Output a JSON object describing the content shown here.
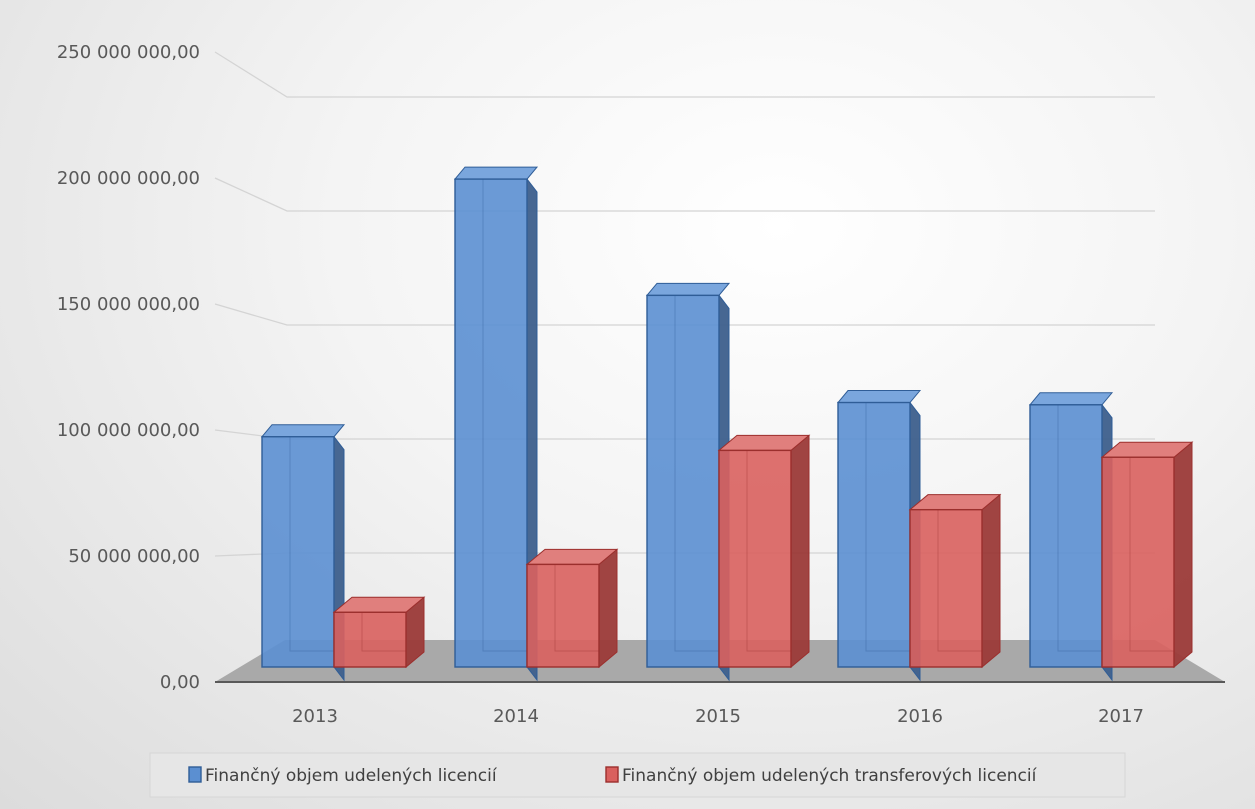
{
  "chart_data": {
    "type": "bar",
    "categories": [
      "2013",
      "2014",
      "2015",
      "2016",
      "2017"
    ],
    "series": [
      {
        "name": "Finančný objem udelených licencií",
        "values": [
          101000000,
          214000000,
          163000000,
          116000000,
          115000000
        ],
        "color": "#5b8fd1"
      },
      {
        "name": "Finančný objem udelených transferových licencií",
        "values": [
          24000000,
          45000000,
          95000000,
          69000000,
          92000000
        ],
        "color": "#d9605e"
      }
    ],
    "y_ticks": [
      0,
      50000000,
      100000000,
      150000000,
      200000000,
      250000000
    ],
    "y_tick_labels": [
      "0,00",
      "50 000 000,00",
      "100 000 000,00",
      "150 000 000,00",
      "200 000 000,00",
      "250 000 000,00"
    ],
    "ylim": [
      0,
      250000000
    ],
    "grid": true,
    "style": "3d-clustered-columns",
    "legend_position": "bottom"
  }
}
